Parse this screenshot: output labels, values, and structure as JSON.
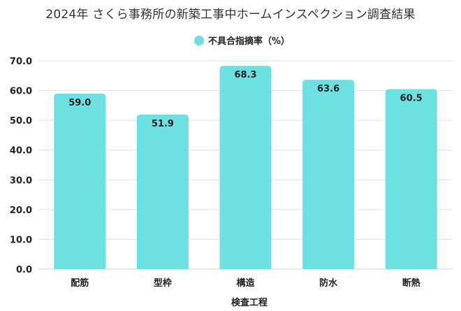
{
  "chart_data": {
    "type": "bar",
    "title": "2024年 さくら事務所の新築工事中ホームインスペクション調査結果",
    "categories": [
      "配筋",
      "型枠",
      "構造",
      "防水",
      "断熱"
    ],
    "series": [
      {
        "name": "不具合指摘率（%）",
        "values": [
          59.0,
          51.9,
          68.3,
          63.6,
          60.5
        ],
        "color": "#6de0e1"
      }
    ],
    "value_labels": [
      "59.0",
      "51.9",
      "68.3",
      "63.6",
      "60.5"
    ],
    "xlabel": "検査工程",
    "ylabel": "",
    "ylim": [
      0,
      70
    ],
    "yticks": [
      "0.0",
      "10.0",
      "20.0",
      "30.0",
      "40.0",
      "50.0",
      "60.0",
      "70.0"
    ],
    "grid": true,
    "legend_position": "top-center"
  }
}
